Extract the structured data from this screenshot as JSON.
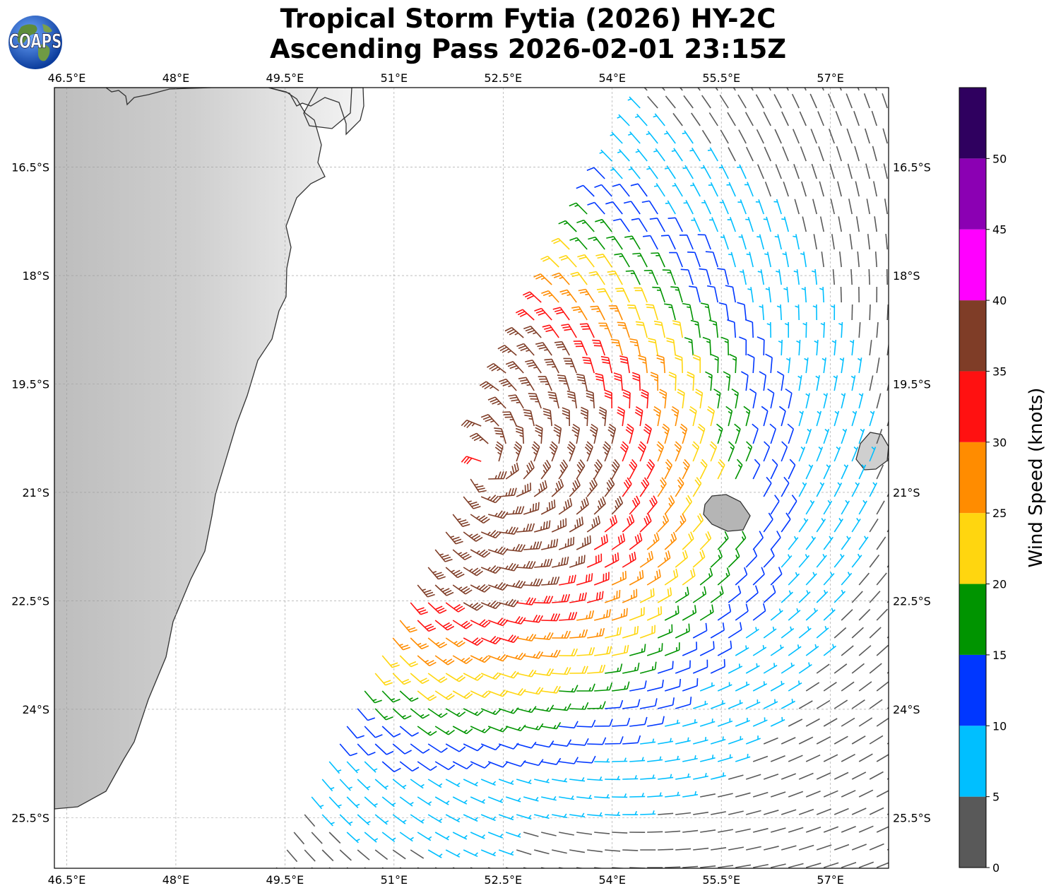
{
  "title": {
    "line1": "Tropical Storm Fytia (2026) HY-2C",
    "line2": "Ascending Pass 2026-02-01 23:15Z"
  },
  "logo": {
    "text": "COAPS",
    "icon": "globe-icon"
  },
  "map": {
    "lon_range": [
      46.33,
      57.8
    ],
    "lat_range": [
      -26.2,
      -15.4
    ],
    "lon_ticks": [
      {
        "value": 46.5,
        "label": "46.5°E"
      },
      {
        "value": 48,
        "label": "48°E"
      },
      {
        "value": 49.5,
        "label": "49.5°E"
      },
      {
        "value": 51,
        "label": "51°E"
      },
      {
        "value": 52.5,
        "label": "52.5°E"
      },
      {
        "value": 54,
        "label": "54°E"
      },
      {
        "value": 55.5,
        "label": "55.5°E"
      },
      {
        "value": 57,
        "label": "57°E"
      }
    ],
    "lat_ticks": [
      {
        "value": -16.5,
        "label": "16.5°S"
      },
      {
        "value": -18,
        "label": "18°S"
      },
      {
        "value": -19.5,
        "label": "19.5°S"
      },
      {
        "value": -21,
        "label": "21°S"
      },
      {
        "value": -22.5,
        "label": "22.5°S"
      },
      {
        "value": -24,
        "label": "24°S"
      },
      {
        "value": -25.5,
        "label": "25.5°S"
      }
    ],
    "gridlines": true,
    "storm_center": {
      "lon": 52.2,
      "lat": -20.6
    },
    "land_color": "#d8d8d8",
    "coast_color": "#333333"
  },
  "colorbar": {
    "label": "Wind Speed (knots)",
    "bins": [
      {
        "min": 0,
        "max": 5,
        "color": "#595959"
      },
      {
        "min": 5,
        "max": 10,
        "color": "#00bfff"
      },
      {
        "min": 10,
        "max": 15,
        "color": "#0037ff"
      },
      {
        "min": 15,
        "max": 20,
        "color": "#009400"
      },
      {
        "min": 20,
        "max": 25,
        "color": "#ffd60f"
      },
      {
        "min": 25,
        "max": 30,
        "color": "#ff8c00"
      },
      {
        "min": 30,
        "max": 35,
        "color": "#ff1111"
      },
      {
        "min": 35,
        "max": 40,
        "color": "#7f3d27"
      },
      {
        "min": 40,
        "max": 45,
        "color": "#ff00ff"
      },
      {
        "min": 45,
        "max": 50,
        "color": "#8b00b3"
      },
      {
        "min": 50,
        "max": 55,
        "color": "#2f005f"
      }
    ],
    "ticks": [
      0,
      5,
      10,
      15,
      20,
      25,
      30,
      35,
      40,
      45,
      50
    ]
  }
}
